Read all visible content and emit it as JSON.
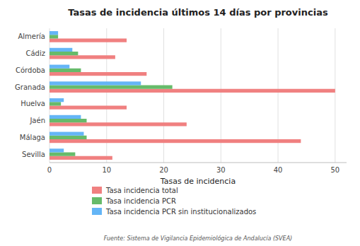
{
  "chart_data": {
    "type": "bar",
    "orientation": "horizontal",
    "title": "Tasas de incidencia últimos 14 días por provincias",
    "xlabel": "Tasas de incidencia",
    "annotations": [
      "Fuente: Sistema de Vigilancia Epidemiológica de Andalucía (SVEA)"
    ],
    "categories": [
      "Almería",
      "Cádiz",
      "Córdoba",
      "Granada",
      "Huelva",
      "Jaén",
      "Málaga",
      "Sevilla"
    ],
    "series": [
      {
        "name": "Tasa incidencia total",
        "color": "#F08080",
        "values": [
          13.5,
          11.5,
          17.0,
          50.0,
          13.5,
          24.0,
          44.0,
          11.0
        ]
      },
      {
        "name": "Tasa incidencia PCR",
        "color": "#66BB6A",
        "values": [
          1.5,
          5.0,
          5.5,
          21.5,
          2.0,
          6.5,
          6.5,
          4.5
        ]
      },
      {
        "name": "Tasa incidencia PCR sin institucionalizados",
        "color": "#64B5F6",
        "values": [
          1.5,
          4.0,
          3.5,
          16.0,
          2.5,
          5.5,
          6.0,
          2.5
        ]
      }
    ],
    "xlim": [
      0,
      52
    ],
    "xticks": [
      0,
      10,
      20,
      30,
      40,
      50
    ],
    "grid": true,
    "legend": "bottom"
  }
}
